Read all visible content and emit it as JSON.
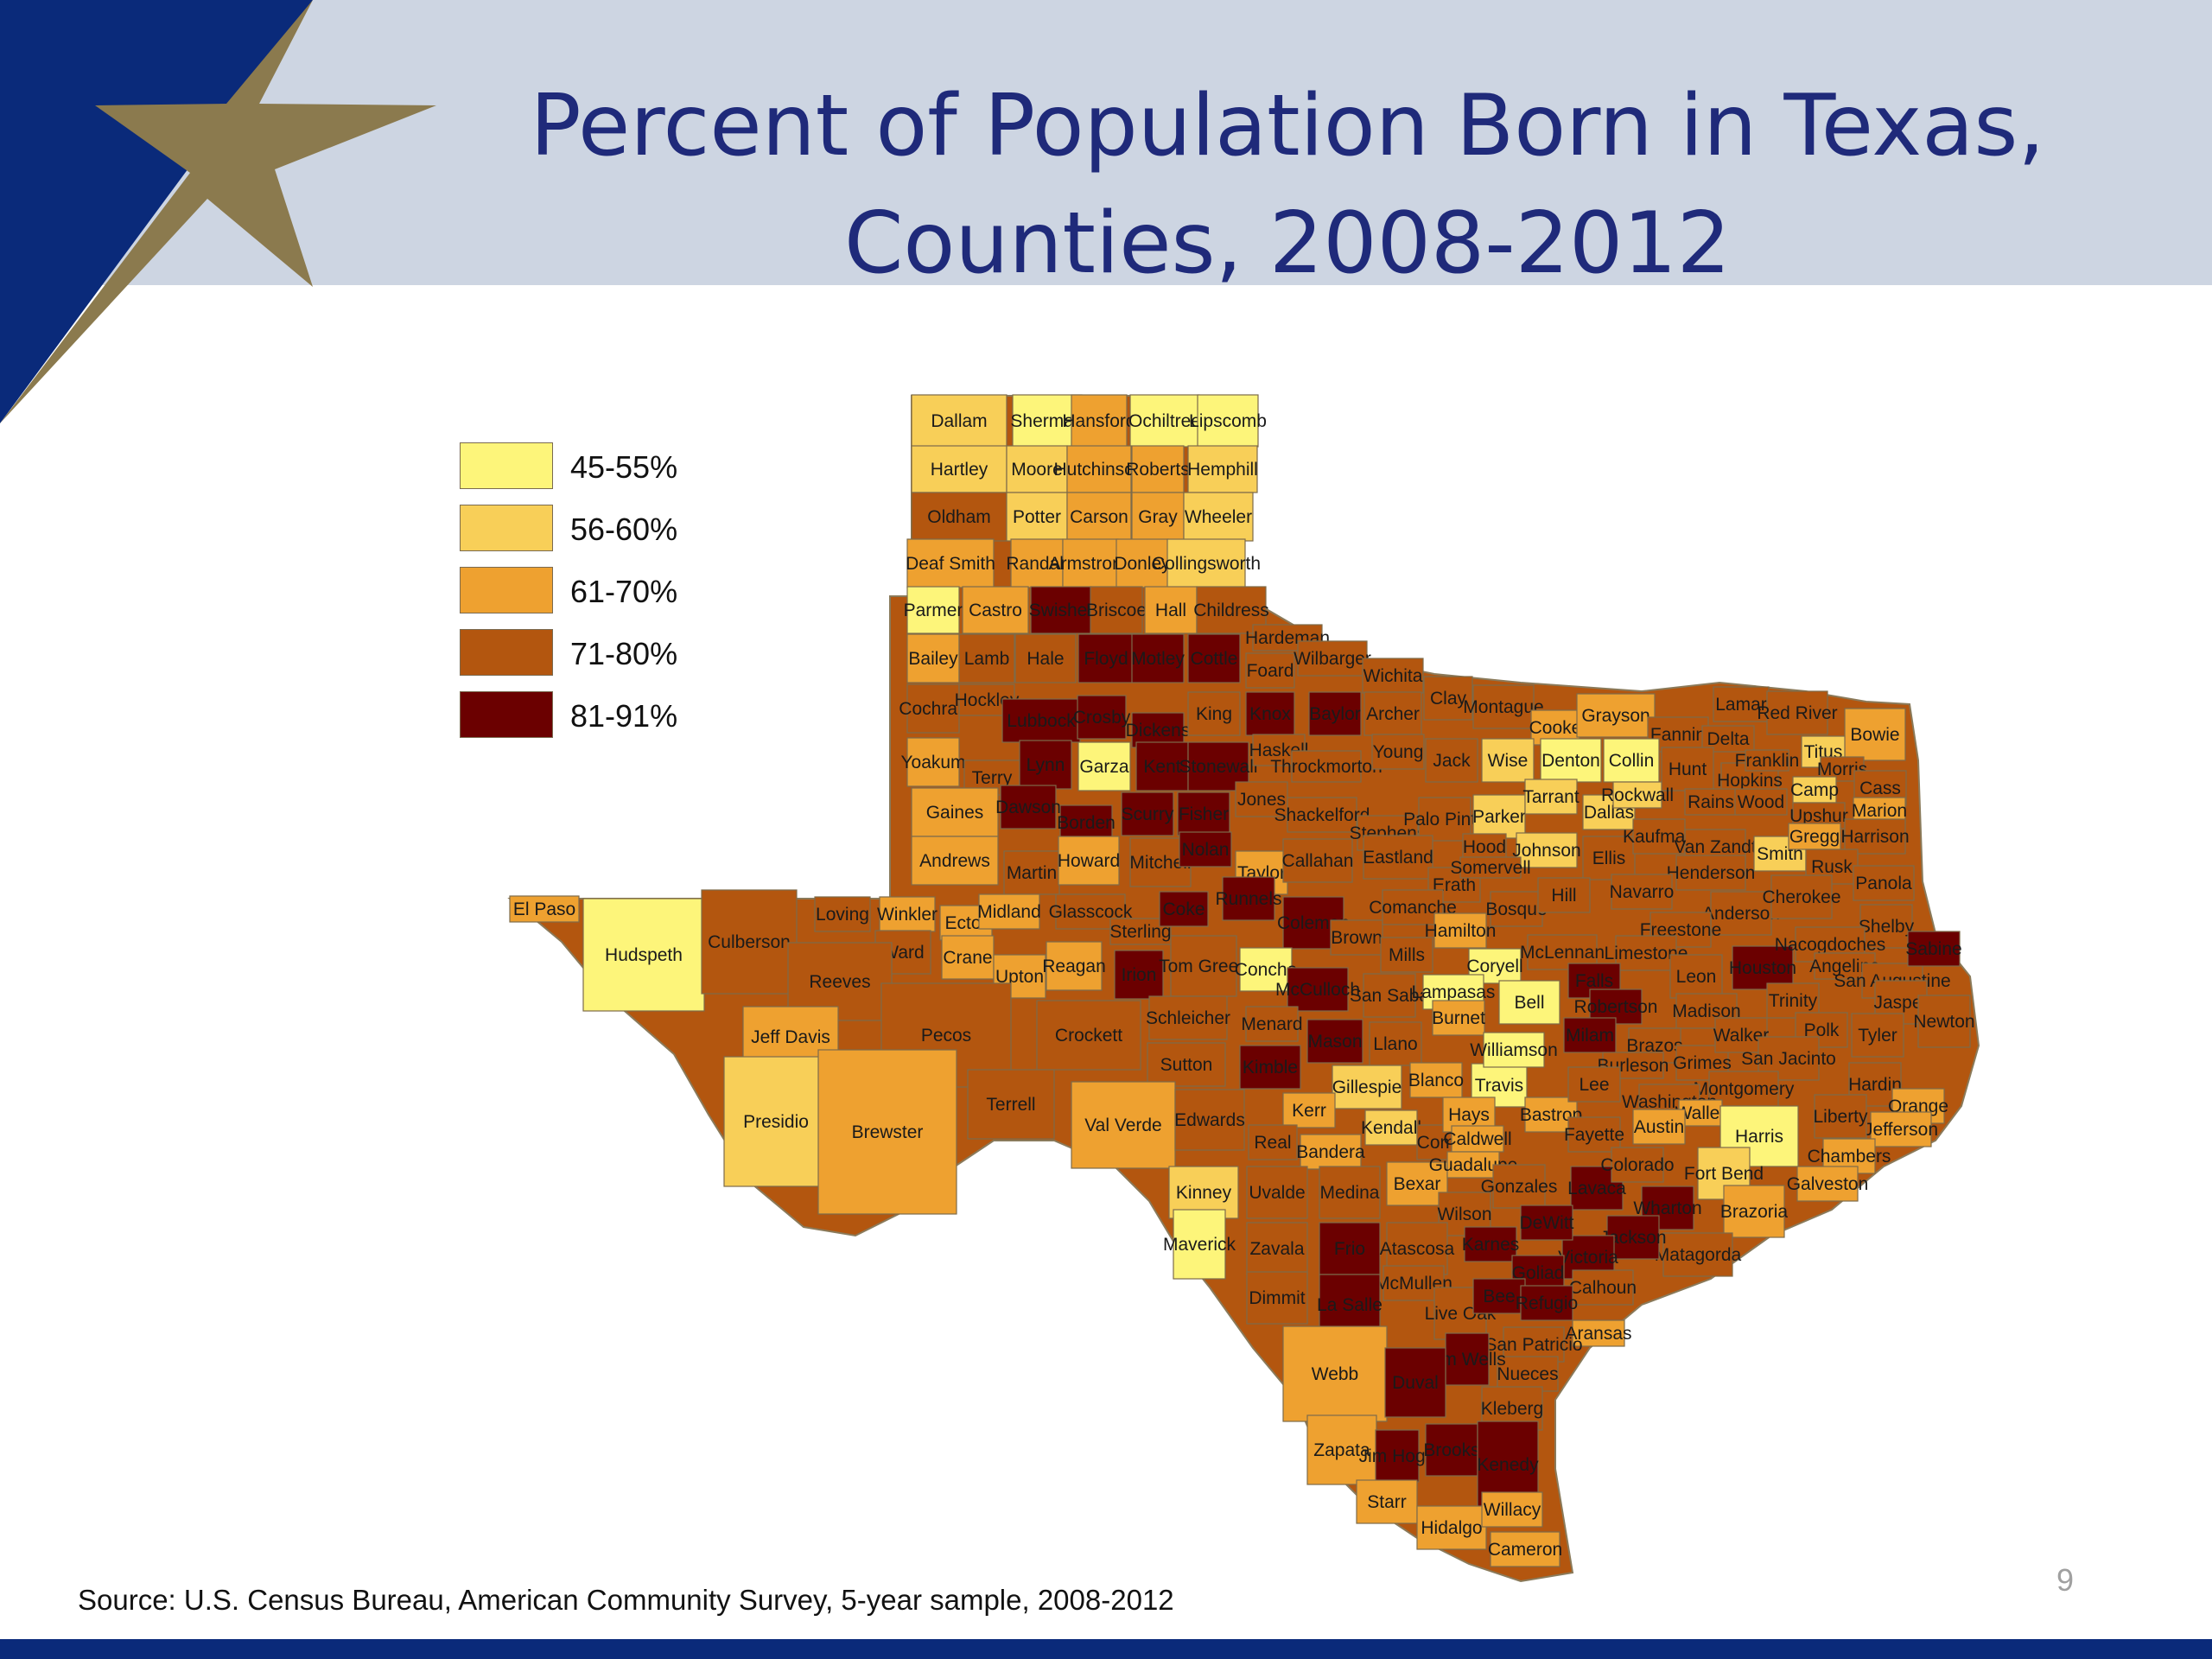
{
  "slide": {
    "title_line1": "Percent of Population Born in Texas,",
    "title_line2": "Counties, 2008-2012",
    "source": "Source: U.S. Census Bureau, American Community Survey, 5-year sample, 2008-2012",
    "page_number": "9"
  },
  "colors": {
    "navy": "#0a2a7a",
    "star_gold": "#8b7a4e",
    "header_band": "#cdd5e2",
    "title_text": "#1f2a7a"
  },
  "legend": [
    {
      "label": "45-55%",
      "color": "#fdf57a"
    },
    {
      "label": "56-60%",
      "color": "#f8cf58"
    },
    {
      "label": "61-70%",
      "color": "#eea130"
    },
    {
      "label": "71-80%",
      "color": "#b3560f"
    },
    {
      "label": "81-91%",
      "color": "#6b0000"
    }
  ],
  "map": {
    "counties": [
      "Dallam",
      "Sherman",
      "Hansford",
      "Ochiltree",
      "Lipscomb",
      "Hartley",
      "Moore",
      "Hutchinson",
      "Roberts",
      "Hemphill",
      "Oldham",
      "Potter",
      "Carson",
      "Gray",
      "Wheeler",
      "Deaf Smith",
      "Randall",
      "Armstrong",
      "Donley",
      "Collingsworth",
      "Parmer",
      "Castro",
      "Swisher",
      "Briscoe",
      "Hall",
      "Childress",
      "Hardeman",
      "Bailey",
      "Lamb",
      "Hale",
      "Floyd",
      "Motley",
      "Cottle",
      "Foard",
      "Wilbarger",
      "Wichita",
      "Cochran",
      "Hockley",
      "Lubbock",
      "Crosby",
      "Dickens",
      "King",
      "Knox",
      "Baylor",
      "Archer",
      "Clay",
      "Montague",
      "Cooke",
      "Grayson",
      "Fannin",
      "Lamar",
      "Red River",
      "Bowie",
      "Delta",
      "Yoakum",
      "Terry",
      "Lynn",
      "Garza",
      "Kent",
      "Stonewall",
      "Haskell",
      "Throckmorton",
      "Young",
      "Jack",
      "Wise",
      "Denton",
      "Collin",
      "Hunt",
      "Hopkins",
      "Franklin",
      "Titus",
      "Morris",
      "Camp",
      "Cass",
      "Gaines",
      "Dawson",
      "Borden",
      "Scurry",
      "Fisher",
      "Jones",
      "Shackelford",
      "Stephens",
      "Palo Pinto",
      "Parker",
      "Tarrant",
      "Dallas",
      "Rockwall",
      "Rains",
      "Wood",
      "Upshur",
      "Marion",
      "Andrews",
      "Martin",
      "Howard",
      "Mitchell",
      "Nolan",
      "Taylor",
      "Callahan",
      "Eastland",
      "Erath",
      "Hood",
      "Johnson",
      "Somervell",
      "Ellis",
      "Kaufman",
      "Van Zandt",
      "Smith",
      "Gregg",
      "Harrison",
      "Rusk",
      "Panola",
      "Henderson",
      "El Paso",
      "Hudspeth",
      "Culberson",
      "Loving",
      "Winkler",
      "Ector",
      "Midland",
      "Glasscock",
      "Sterling",
      "Coke",
      "Runnels",
      "Coleman",
      "Brown",
      "Comanche",
      "Hamilton",
      "Bosque",
      "Hill",
      "Navarro",
      "Anderson",
      "Cherokee",
      "Shelby",
      "Freestone",
      "Ward",
      "Crane",
      "Upton",
      "Reagan",
      "Irion",
      "Tom Green",
      "Concho",
      "McCulloch",
      "Mills",
      "San Saba",
      "Coryell",
      "McLennan",
      "Limestone",
      "Leon",
      "Houston",
      "Nacogdoches",
      "Angelina",
      "San Augustine",
      "Sabine",
      "Reeves",
      "Jeff Davis",
      "Pecos",
      "Crockett",
      "Schleicher",
      "Menard",
      "Mason",
      "Llano",
      "Lampasas",
      "Burnet",
      "Bell",
      "Falls",
      "Robertson",
      "Madison",
      "Trinity",
      "Jasper",
      "Newton",
      "Polk",
      "Tyler",
      "Sutton",
      "Kimble",
      "Gillespie",
      "Blanco",
      "Travis",
      "Williamson",
      "Milam",
      "Brazos",
      "Burleson",
      "Grimes",
      "Walker",
      "San Jacinto",
      "Hardin",
      "Orange",
      "Jefferson",
      "Liberty",
      "Montgomery",
      "Presidio",
      "Brewster",
      "Terrell",
      "Val Verde",
      "Edwards",
      "Kerr",
      "Kendall",
      "Comal",
      "Hays",
      "Caldwell",
      "Bastrop",
      "Lee",
      "Washington",
      "Waller",
      "Harris",
      "Chambers",
      "Galveston",
      "Austin",
      "Fayette",
      "Real",
      "Bandera",
      "Bexar",
      "Guadalupe",
      "Gonzales",
      "Lavaca",
      "Colorado",
      "Wharton",
      "Fort Bend",
      "Brazoria",
      "Matagorda",
      "Jackson",
      "Victoria",
      "DeWitt",
      "Wilson",
      "Karnes",
      "Goliad",
      "Calhoun",
      "Kinney",
      "Uvalde",
      "Medina",
      "Maverick",
      "Zavala",
      "Frio",
      "Atascosa",
      "McMullen",
      "Live Oak",
      "Bee",
      "Refugio",
      "Aransas",
      "San Patricio",
      "Nueces",
      "Kleberg",
      "Jim Wells",
      "Dimmit",
      "La Salle",
      "Webb",
      "Duval",
      "Zapata",
      "Jim Hogg",
      "Brooks",
      "Kenedy",
      "Starr",
      "Hidalgo",
      "Willacy",
      "Cameron"
    ]
  }
}
